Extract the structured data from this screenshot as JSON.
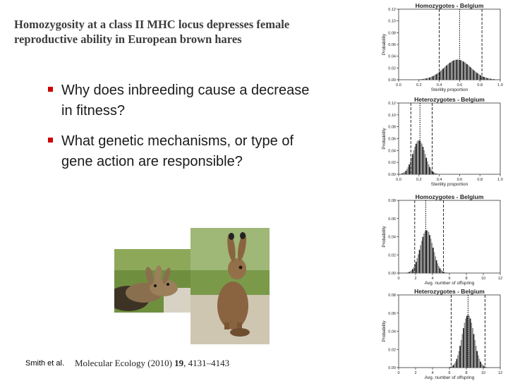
{
  "slide": {
    "title_line1": "Homozygosity at a class II MHC locus depresses female",
    "title_line2": "reproductive ability in European brown hares",
    "bullets": [
      {
        "line1": "Why does inbreeding cause a decrease",
        "line2": "in fitness?"
      },
      {
        "line1": "What genetic mechanisms, or type of",
        "line2": "gene action are responsible?"
      }
    ],
    "citation": "Smith et al.",
    "journal": {
      "name": "Molecular Ecology",
      "year": "(2010)",
      "volume": "19",
      "pages": ", 4131–4143"
    },
    "marker_color": "#cc0000"
  },
  "chart_data": [
    {
      "type": "bar",
      "title": "Homozygotes - Belgium",
      "xlabel": "Sterility proportion",
      "ylabel": "Probability",
      "xlim": [
        0,
        1
      ],
      "ylim": [
        0,
        0.12
      ],
      "xticks": [
        "0.0",
        "0.2",
        "0.4",
        "0.6",
        "0.8",
        "1.0"
      ],
      "yticks": [
        "0.00",
        "0.02",
        "0.04",
        "0.06",
        "0.08",
        "0.10",
        "0.12"
      ],
      "distribution": {
        "mean": 0.58,
        "sd": 0.13,
        "peak": 0.034
      },
      "lines": {
        "mean": 0.6,
        "ci": [
          0.4,
          0.82
        ]
      }
    },
    {
      "type": "bar",
      "title": "Heterozygotes - Belgium",
      "xlabel": "Sterility proportion",
      "ylabel": "Probability",
      "xlim": [
        0,
        1
      ],
      "ylim": [
        0,
        0.12
      ],
      "xticks": [
        "0.0",
        "0.2",
        "0.4",
        "0.6",
        "0.8",
        "1.0"
      ],
      "yticks": [
        "0.00",
        "0.02",
        "0.04",
        "0.06",
        "0.08",
        "0.10",
        "0.12"
      ],
      "distribution": {
        "mean": 0.2,
        "sd": 0.06,
        "peak": 0.057
      },
      "lines": {
        "mean": 0.21,
        "ci": [
          0.12,
          0.33
        ]
      }
    },
    {
      "type": "bar",
      "title": "Homozygotes - Belgium",
      "xlabel": "Avg. number of offspring",
      "ylabel": "Probability",
      "xlim": [
        0,
        12
      ],
      "ylim": [
        0,
        0.08
      ],
      "xticks": [
        "0",
        "2",
        "4",
        "6",
        "8",
        "10",
        "12"
      ],
      "yticks": [
        "0.00",
        "0.02",
        "0.04",
        "0.06",
        "0.08"
      ],
      "distribution": {
        "mean": 3.3,
        "sd": 0.75,
        "peak": 0.047
      },
      "lines": {
        "mean": 3.2,
        "ci": [
          1.9,
          5.3
        ]
      }
    },
    {
      "type": "bar",
      "title": "Heterozygotes - Belgium",
      "xlabel": "Avg. number of offspring",
      "ylabel": "Probability",
      "xlim": [
        0,
        12
      ],
      "ylim": [
        0,
        0.08
      ],
      "xticks": [
        "0",
        "2",
        "4",
        "6",
        "8",
        "10",
        "12"
      ],
      "yticks": [
        "0.00",
        "0.02",
        "0.04",
        "0.06",
        "0.08"
      ],
      "distribution": {
        "mean": 8.2,
        "sd": 0.7,
        "peak": 0.058
      },
      "lines": {
        "mean": 8.2,
        "ci": [
          6.2,
          10.2
        ]
      }
    }
  ]
}
